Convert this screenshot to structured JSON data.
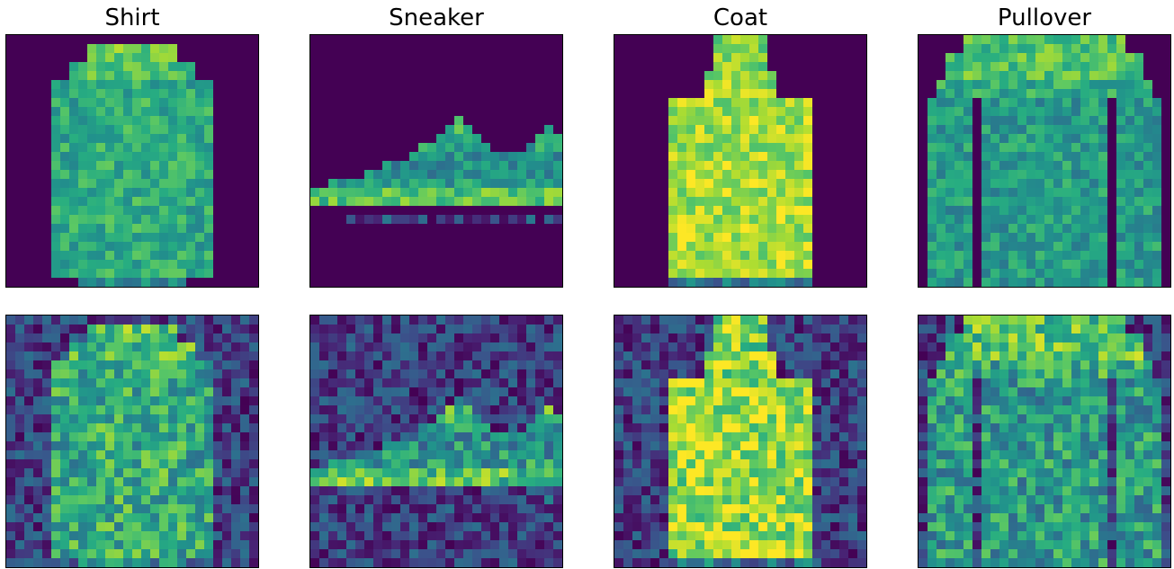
{
  "titles": [
    "Shirt",
    "Sneaker",
    "Coat",
    "Pullover"
  ],
  "rows": [
    "clean",
    "noisy"
  ],
  "colormap": "viridis",
  "colors": {
    "background": "#ffffff",
    "frame": "#000000",
    "viridis_low": "#440154",
    "viridis_high": "#fde725"
  }
}
